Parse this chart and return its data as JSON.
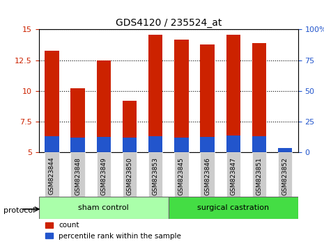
{
  "title": "GDS4120 / 235524_at",
  "samples": [
    "GSM823844",
    "GSM823848",
    "GSM823849",
    "GSM823850",
    "GSM823853",
    "GSM823845",
    "GSM823846",
    "GSM823847",
    "GSM823851",
    "GSM823852"
  ],
  "red_values": [
    13.3,
    10.2,
    12.5,
    9.2,
    14.6,
    14.2,
    13.8,
    14.6,
    13.9,
    5.3
  ],
  "blue_values": [
    6.3,
    6.2,
    6.25,
    6.22,
    6.3,
    6.22,
    6.25,
    6.38,
    6.3,
    5.35
  ],
  "ylim_left": [
    5,
    15
  ],
  "ylim_right": [
    0,
    100
  ],
  "yticks_left": [
    5.0,
    7.5,
    10.0,
    12.5,
    15.0
  ],
  "yticks_right": [
    0,
    25,
    50,
    75,
    100
  ],
  "ytick_labels_left": [
    "5",
    "7.5",
    "10",
    "12.5",
    "15"
  ],
  "ytick_labels_right": [
    "0",
    "25",
    "50",
    "75",
    "100%"
  ],
  "protocol_groups": [
    {
      "label": "sham control",
      "start": 0,
      "end": 5,
      "color": "#aaffaa"
    },
    {
      "label": "surgical castration",
      "start": 5,
      "end": 10,
      "color": "#44dd44"
    }
  ],
  "protocol_label": "protocol",
  "bar_width": 0.55,
  "bar_bottom": 5.0,
  "red_color": "#cc2200",
  "blue_color": "#2255cc",
  "bg_color": "#ffffff",
  "plot_bg_color": "#ffffff",
  "grid_color": "#000000",
  "tick_color_left": "#cc2200",
  "tick_color_right": "#2255cc",
  "legend_items": [
    {
      "label": "count",
      "color": "#cc2200"
    },
    {
      "label": "percentile rank within the sample",
      "color": "#2255cc"
    }
  ],
  "xticklabel_bg": "#cccccc"
}
